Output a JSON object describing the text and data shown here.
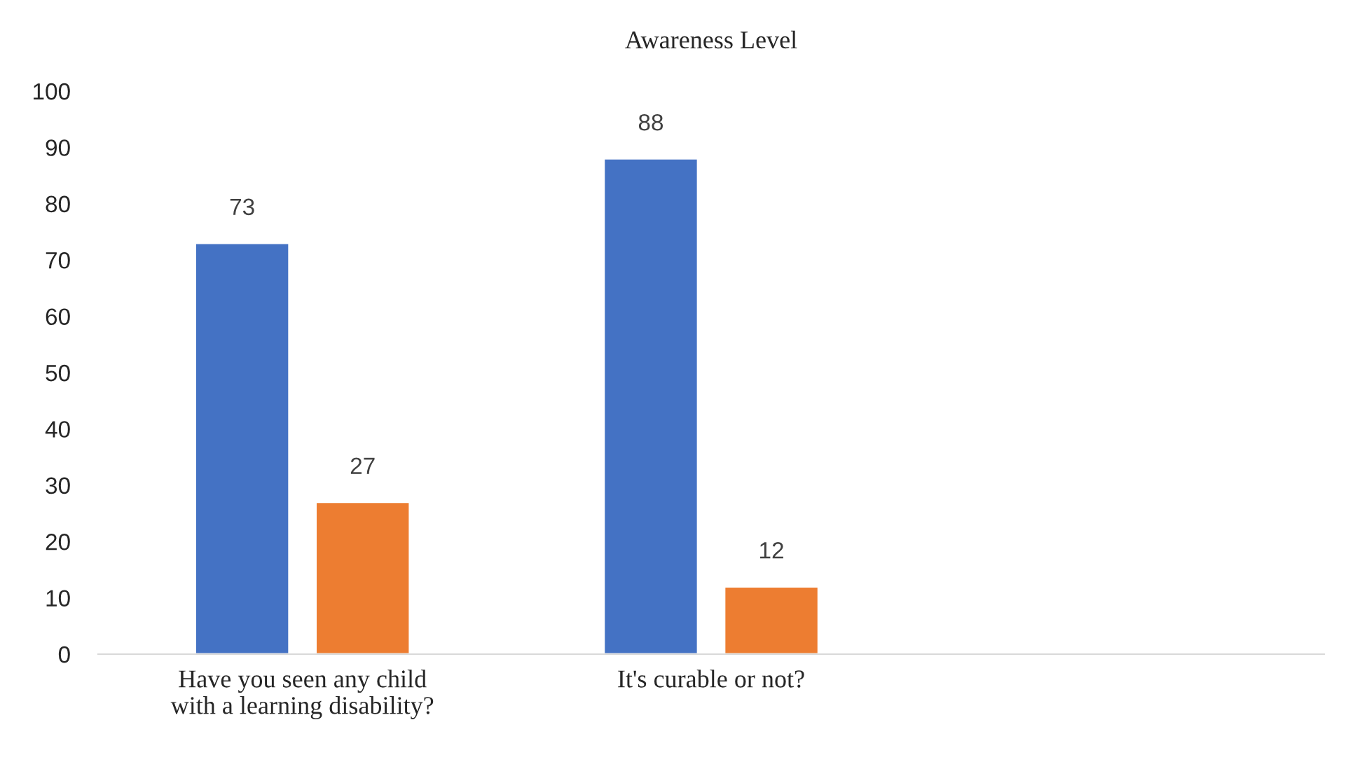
{
  "chart_data": {
    "type": "bar",
    "title": "Awareness Level",
    "categories": [
      "Have you seen any child\nwith a learning disability?",
      "It's curable or not?",
      null
    ],
    "series": [
      {
        "color": "#4472c4",
        "values": [
          73,
          88,
          null
        ]
      },
      {
        "color": "#ed7d31",
        "values": [
          27,
          12,
          null
        ]
      }
    ],
    "ylim": [
      0,
      100
    ],
    "yticks": [
      0,
      10,
      20,
      30,
      40,
      50,
      60,
      70,
      80,
      90,
      100
    ],
    "grid": false,
    "legend": false,
    "data_labels": true
  }
}
